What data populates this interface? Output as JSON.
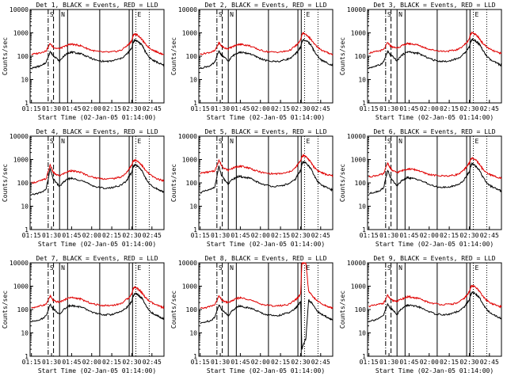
{
  "chart_data": {
    "type": "line",
    "common": {
      "xlabel": "Start Time (02-Jan-05 01:14:00)",
      "ylabel": "Counts/sec",
      "x_unit": "minutes_since_01:14",
      "xlim": [
        0,
        100
      ],
      "yscale": "log",
      "ylim": [
        1,
        10000
      ],
      "x_ticks": [
        1,
        16,
        31,
        46,
        61,
        76,
        91
      ],
      "x_tick_labels": [
        "01:15",
        "01:30",
        "01:45",
        "02:00",
        "02:15",
        "02:30",
        "02:45"
      ],
      "y_ticks": [
        1,
        10,
        100,
        1000,
        10000
      ],
      "y_tick_labels": [
        "1",
        "10",
        "100",
        "1000",
        "10000"
      ],
      "legend": "BLACK = Events, RED = LLD",
      "series_colors": {
        "events": "#000000",
        "lld": "#e00000"
      },
      "markers": [
        {
          "x": 13.5,
          "style": "dashdot",
          "label": "S"
        },
        {
          "x": 17.5,
          "style": "dashed",
          "label": ""
        },
        {
          "x": 22,
          "style": "solid",
          "label": "N"
        },
        {
          "x": 28,
          "style": "solid",
          "label": ""
        },
        {
          "x": 52,
          "style": "solid",
          "label": ""
        },
        {
          "x": 74,
          "style": "solid",
          "label": ""
        },
        {
          "x": 76.5,
          "style": "solid",
          "label": ""
        },
        {
          "x": 79,
          "style": "dotted",
          "label": "E"
        },
        {
          "x": 89,
          "style": "dotted",
          "label": ""
        }
      ],
      "x": [
        1,
        5,
        9,
        12,
        15,
        17,
        19,
        22,
        25,
        28,
        30,
        32,
        35,
        38,
        42,
        46,
        50,
        55,
        60,
        64,
        68,
        72,
        74,
        76,
        77,
        78,
        80,
        82,
        84,
        86,
        89,
        92,
        95,
        98,
        100
      ]
    },
    "panels": [
      {
        "title": "Det 1",
        "events": [
          30,
          35,
          40,
          55,
          160,
          110,
          90,
          60,
          100,
          130,
          150,
          145,
          135,
          130,
          100,
          80,
          65,
          60,
          60,
          70,
          80,
          120,
          160,
          230,
          380,
          480,
          450,
          360,
          280,
          160,
          90,
          65,
          55,
          45,
          40
        ],
        "lld": [
          120,
          130,
          150,
          170,
          350,
          250,
          220,
          210,
          250,
          300,
          330,
          320,
          300,
          280,
          220,
          180,
          160,
          150,
          150,
          160,
          180,
          270,
          330,
          480,
          800,
          900,
          820,
          650,
          480,
          330,
          230,
          180,
          150,
          130,
          120
        ]
      },
      {
        "title": "Det 2",
        "events": [
          30,
          35,
          40,
          55,
          170,
          110,
          90,
          60,
          100,
          130,
          150,
          145,
          135,
          130,
          100,
          80,
          65,
          60,
          60,
          70,
          80,
          120,
          170,
          240,
          400,
          500,
          470,
          380,
          290,
          170,
          95,
          65,
          55,
          45,
          40
        ],
        "lld": [
          120,
          135,
          150,
          170,
          380,
          270,
          230,
          210,
          250,
          300,
          330,
          320,
          300,
          280,
          220,
          180,
          160,
          150,
          150,
          160,
          180,
          270,
          340,
          500,
          850,
          950,
          860,
          680,
          500,
          340,
          240,
          180,
          150,
          130,
          120
        ]
      },
      {
        "title": "Det 3",
        "events": [
          32,
          36,
          42,
          58,
          160,
          115,
          95,
          62,
          105,
          135,
          155,
          150,
          138,
          132,
          102,
          82,
          66,
          61,
          60,
          72,
          82,
          125,
          180,
          250,
          420,
          520,
          480,
          390,
          300,
          180,
          100,
          68,
          56,
          46,
          40
        ],
        "lld": [
          140,
          150,
          170,
          190,
          380,
          280,
          240,
          230,
          270,
          320,
          350,
          340,
          320,
          300,
          240,
          200,
          180,
          165,
          165,
          175,
          200,
          300,
          380,
          560,
          900,
          1000,
          900,
          720,
          520,
          360,
          250,
          190,
          160,
          140,
          130
        ]
      },
      {
        "title": "Det 4",
        "events": [
          30,
          35,
          40,
          55,
          400,
          160,
          110,
          70,
          110,
          140,
          160,
          150,
          140,
          130,
          100,
          80,
          65,
          60,
          60,
          70,
          80,
          120,
          200,
          280,
          480,
          600,
          550,
          420,
          300,
          170,
          90,
          65,
          55,
          45,
          40
        ],
        "lld": [
          100,
          110,
          130,
          150,
          600,
          300,
          230,
          200,
          250,
          300,
          330,
          320,
          300,
          280,
          220,
          180,
          160,
          150,
          150,
          160,
          180,
          270,
          400,
          600,
          850,
          950,
          880,
          700,
          520,
          350,
          240,
          180,
          150,
          130,
          120
        ]
      },
      {
        "title": "Det 5",
        "events": [
          38,
          45,
          52,
          70,
          500,
          200,
          140,
          90,
          140,
          170,
          190,
          180,
          170,
          160,
          120,
          95,
          80,
          72,
          70,
          82,
          95,
          140,
          230,
          330,
          650,
          800,
          700,
          520,
          380,
          210,
          110,
          80,
          65,
          55,
          48
        ],
        "lld": [
          260,
          280,
          300,
          330,
          950,
          550,
          420,
          350,
          420,
          480,
          520,
          500,
          470,
          430,
          340,
          290,
          260,
          245,
          245,
          260,
          300,
          430,
          620,
          900,
          1300,
          1500,
          1350,
          1000,
          720,
          480,
          330,
          270,
          230,
          210,
          200
        ]
      },
      {
        "title": "Det 6",
        "events": [
          34,
          40,
          46,
          62,
          350,
          170,
          120,
          75,
          115,
          150,
          170,
          160,
          150,
          140,
          110,
          86,
          70,
          65,
          64,
          74,
          86,
          130,
          210,
          290,
          520,
          650,
          580,
          440,
          320,
          180,
          100,
          72,
          60,
          50,
          44
        ],
        "lld": [
          180,
          200,
          220,
          240,
          720,
          420,
          320,
          280,
          320,
          370,
          400,
          390,
          370,
          340,
          270,
          230,
          210,
          200,
          200,
          210,
          240,
          350,
          500,
          700,
          1000,
          1150,
          1050,
          800,
          580,
          390,
          270,
          220,
          190,
          170,
          160
        ]
      },
      {
        "title": "Det 7",
        "events": [
          30,
          35,
          40,
          55,
          170,
          110,
          90,
          60,
          100,
          130,
          150,
          145,
          135,
          130,
          100,
          80,
          65,
          60,
          60,
          70,
          80,
          120,
          160,
          230,
          380,
          480,
          450,
          360,
          280,
          160,
          90,
          65,
          55,
          45,
          40
        ],
        "lld": [
          120,
          130,
          150,
          170,
          380,
          260,
          220,
          210,
          250,
          300,
          330,
          320,
          300,
          280,
          220,
          180,
          160,
          150,
          150,
          160,
          180,
          270,
          330,
          480,
          800,
          900,
          820,
          650,
          480,
          330,
          230,
          180,
          150,
          130,
          120
        ]
      },
      {
        "title": "Det 8",
        "events": [
          25,
          30,
          34,
          48,
          160,
          100,
          80,
          55,
          90,
          120,
          140,
          135,
          125,
          120,
          95,
          75,
          62,
          56,
          56,
          66,
          75,
          110,
          150,
          220,
          2,
          3,
          6,
          250,
          200,
          140,
          80,
          60,
          50,
          40,
          35
        ],
        "lld": [
          110,
          120,
          140,
          160,
          380,
          260,
          220,
          200,
          240,
          290,
          320,
          310,
          290,
          270,
          210,
          175,
          155,
          145,
          145,
          155,
          175,
          260,
          320,
          460,
          10000,
          10000,
          10000,
          600,
          450,
          320,
          220,
          170,
          145,
          125,
          115
        ]
      },
      {
        "title": "Det 9",
        "events": [
          32,
          36,
          42,
          58,
          170,
          115,
          95,
          62,
          105,
          135,
          155,
          150,
          138,
          132,
          102,
          82,
          66,
          61,
          60,
          72,
          82,
          125,
          180,
          260,
          430,
          540,
          500,
          400,
          300,
          180,
          100,
          68,
          56,
          46,
          40
        ],
        "lld": [
          140,
          150,
          170,
          190,
          400,
          280,
          240,
          230,
          270,
          320,
          350,
          340,
          320,
          300,
          240,
          200,
          180,
          165,
          165,
          175,
          200,
          300,
          390,
          580,
          920,
          1050,
          950,
          760,
          550,
          370,
          250,
          190,
          160,
          140,
          130
        ]
      }
    ]
  }
}
